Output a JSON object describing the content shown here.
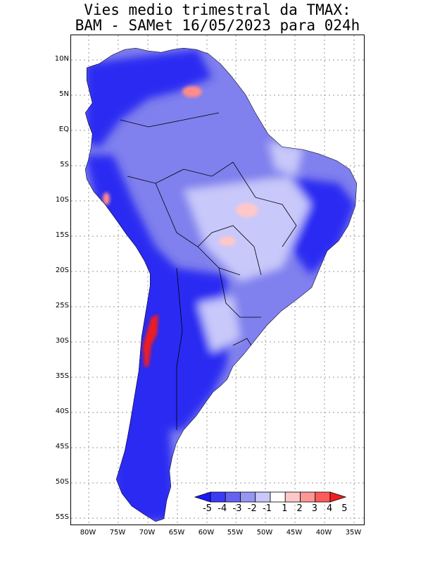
{
  "title": {
    "line1": "Vies medio trimestral da TMAX:",
    "line2": "BAM - SAMet 16/05/2023  para 024h"
  },
  "axes": {
    "y_ticks": [
      "10N",
      "5N",
      "EQ",
      "5S",
      "10S",
      "15S",
      "20S",
      "25S",
      "30S",
      "35S",
      "40S",
      "45S",
      "50S",
      "55S"
    ],
    "x_ticks": [
      "80W",
      "75W",
      "70W",
      "65W",
      "60W",
      "55W",
      "50W",
      "45W",
      "40W",
      "35W"
    ]
  },
  "colorbar": {
    "labels": [
      "-5",
      "-4",
      "-3",
      "-2",
      "-1",
      "1",
      "2",
      "3",
      "4",
      "5"
    ],
    "colors": [
      "#1a1aff",
      "#3b3bf5",
      "#6464f0",
      "#9696f5",
      "#c8c8fa",
      "#ffffff",
      "#ffc8c8",
      "#ff9696",
      "#ff5a5a",
      "#f01e1e"
    ]
  },
  "palette": {
    "ocean": "#ffffff",
    "grid": "#9a9a9a",
    "land_light": "#c8c8fa",
    "land_mid": "#8080ee",
    "land_dark": "#2a2af2",
    "warm_light": "#ffc8c8",
    "warm_mid": "#ff8c8c",
    "hot": "#f01e1e"
  }
}
